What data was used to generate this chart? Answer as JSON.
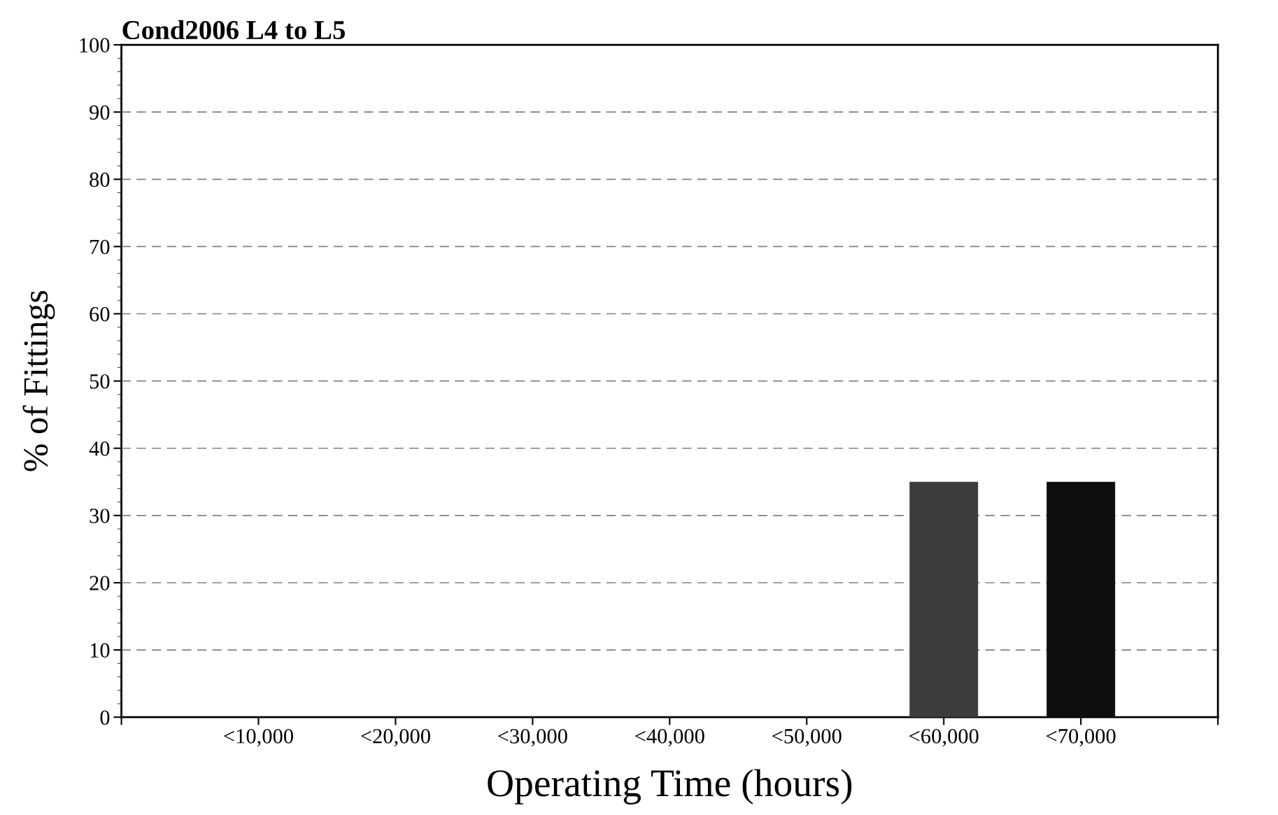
{
  "chart_data": {
    "type": "bar",
    "title": "Cond2006 L4 to L5",
    "xlabel": "Operating Time (hours)",
    "ylabel": "% of Fittings",
    "categories": [
      "<10,000",
      "<20,000",
      "<30,000",
      "<40,000",
      "<50,000",
      "<60,000",
      "<70,000"
    ],
    "values": [
      0,
      0,
      0,
      0,
      0,
      35,
      35
    ],
    "colors": [
      "#3c3c3c",
      "#3c3c3c",
      "#3c3c3c",
      "#3c3c3c",
      "#3c3c3c",
      "#3c3c3c",
      "#0e0e0e"
    ],
    "ylim": [
      0,
      100
    ],
    "yticks": [
      0,
      10,
      20,
      30,
      40,
      50,
      60,
      70,
      80,
      90,
      100
    ],
    "grid": "y",
    "line_style": "dashed"
  }
}
